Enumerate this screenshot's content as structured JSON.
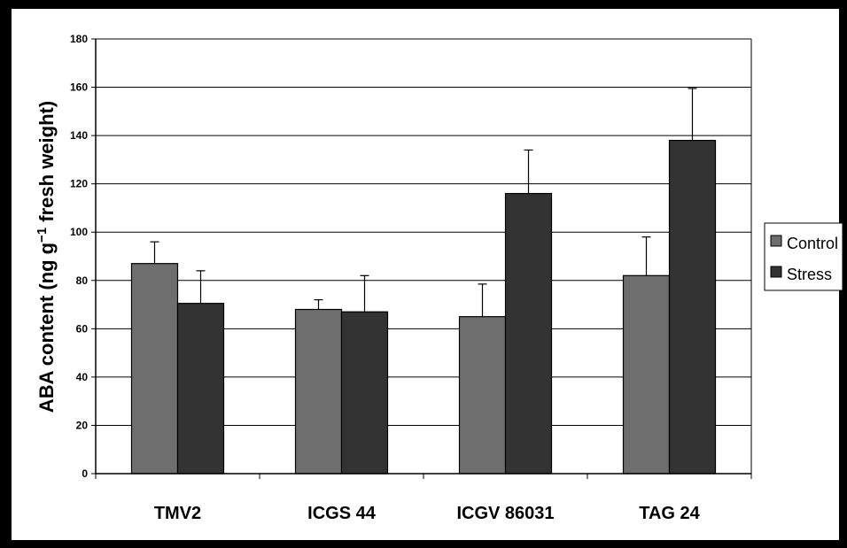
{
  "chart_data": {
    "type": "bar",
    "categories": [
      "TMV2",
      "ICGS 44",
      "ICGV 86031",
      "TAG 24"
    ],
    "series": [
      {
        "name": "Control",
        "color": "#6e6e6e",
        "values": [
          87,
          68,
          65,
          82
        ],
        "errors": [
          9,
          4,
          13.5,
          16
        ]
      },
      {
        "name": "Stress",
        "color": "#333333",
        "values": [
          70.5,
          67,
          116,
          138
        ],
        "errors": [
          13.5,
          15,
          18,
          21.5
        ]
      }
    ],
    "ylabel_main": "ABA content (ng g",
    "ylabel_sup": "−1",
    "ylabel_tail": " fresh weight)",
    "ylim": [
      0,
      180
    ],
    "yticks": [
      0,
      20,
      40,
      60,
      80,
      100,
      120,
      140,
      160,
      180
    ],
    "grid": true,
    "legend_position": "right",
    "error_bars": "positive"
  }
}
